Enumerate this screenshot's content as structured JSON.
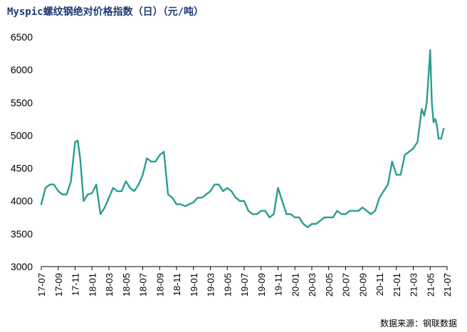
{
  "chart_data": {
    "type": "line",
    "title": "Myspic螺纹钢绝对价格指数（日）（元/吨）",
    "source": "数据来源：钢联数据",
    "xlabel": "",
    "ylabel": "",
    "ylim": [
      3000,
      6500
    ],
    "yticks": [
      3000,
      3500,
      4000,
      4500,
      5000,
      5500,
      6000,
      6500
    ],
    "xticks": [
      "17-07",
      "17-09",
      "17-11",
      "18-01",
      "18-03",
      "18-05",
      "18-07",
      "18-09",
      "18-11",
      "19-01",
      "19-03",
      "19-05",
      "19-07",
      "19-09",
      "19-11",
      "20-01",
      "20-03",
      "20-05",
      "20-07",
      "20-09",
      "20-11",
      "21-01",
      "21-03",
      "21-05",
      "21-07"
    ],
    "grid": false,
    "legend": "none",
    "line_color": "#2a9d8f",
    "series": [
      {
        "x": [
          "17-07",
          "17-07.5",
          "17-08",
          "17-08.5",
          "17-09",
          "17-09.5",
          "17-10",
          "17-10.5",
          "17-11",
          "17-11.3",
          "17-11.6",
          "17-12",
          "17-12.5",
          "18-01",
          "18-01.5",
          "18-02",
          "18-02.5",
          "18-03",
          "18-03.5",
          "18-04",
          "18-04.5",
          "18-05",
          "18-05.5",
          "18-06",
          "18-06.5",
          "18-07",
          "18-07.5",
          "18-08",
          "18-08.5",
          "18-09",
          "18-09.5",
          "18-10",
          "18-10.5",
          "18-11",
          "18-11.5",
          "18-12",
          "18-12.5",
          "19-01",
          "19-01.5",
          "19-02",
          "19-02.5",
          "19-03",
          "19-03.5",
          "19-04",
          "19-04.5",
          "19-05",
          "19-05.5",
          "19-06",
          "19-06.5",
          "19-07",
          "19-07.5",
          "19-08",
          "19-08.5",
          "19-09",
          "19-09.5",
          "19-10",
          "19-10.5",
          "19-11",
          "19-11.5",
          "19-12",
          "19-12.5",
          "20-01",
          "20-01.5",
          "20-02",
          "20-02.5",
          "20-03",
          "20-03.5",
          "20-04",
          "20-04.5",
          "20-05",
          "20-05.5",
          "20-06",
          "20-06.5",
          "20-07",
          "20-07.5",
          "20-08",
          "20-08.5",
          "20-09",
          "20-09.5",
          "20-10",
          "20-10.5",
          "20-11",
          "20-11.5",
          "20-12",
          "20-12.5",
          "21-01",
          "21-01.5",
          "21-02",
          "21-02.5",
          "21-03",
          "21-03.5",
          "21-04",
          "21-04.3",
          "21-04.6",
          "21-05",
          "21-05.2",
          "21-05.4",
          "21-05.6",
          "21-05.8",
          "21-06",
          "21-06.3",
          "21-06.6"
        ],
        "values": [
          3950,
          4200,
          4250,
          4250,
          4150,
          4100,
          4100,
          4300,
          4900,
          4920,
          4650,
          4000,
          4100,
          4120,
          4250,
          3800,
          3900,
          4050,
          4200,
          4150,
          4150,
          4300,
          4200,
          4150,
          4250,
          4400,
          4650,
          4600,
          4600,
          4700,
          4750,
          4100,
          4050,
          3950,
          3950,
          3920,
          3950,
          3980,
          4050,
          4050,
          4100,
          4150,
          4250,
          4250,
          4150,
          4200,
          4150,
          4050,
          4000,
          4000,
          3850,
          3800,
          3800,
          3850,
          3850,
          3750,
          3800,
          4200,
          4000,
          3800,
          3800,
          3750,
          3750,
          3650,
          3600,
          3650,
          3650,
          3700,
          3750,
          3750,
          3750,
          3850,
          3800,
          3800,
          3850,
          3850,
          3850,
          3900,
          3850,
          3800,
          3850,
          4050,
          4150,
          4250,
          4600,
          4400,
          4400,
          4700,
          4750,
          4800,
          4900,
          5400,
          5300,
          5500,
          6300,
          5500,
          5200,
          5250,
          5150,
          4950,
          4950,
          5100
        ]
      }
    ]
  }
}
